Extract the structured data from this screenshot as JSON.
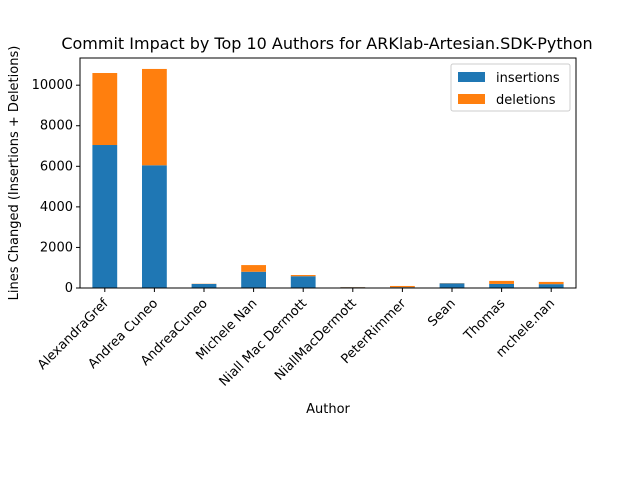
{
  "chart_data": {
    "type": "bar",
    "stacked": true,
    "title": "Commit Impact by Top 10 Authors for ARKlab-Artesian.SDK-Python",
    "xlabel": "Author",
    "ylabel": "Lines Changed (Insertions + Deletions)",
    "categories": [
      "AlexandraGref",
      "Andrea Cuneo",
      "AndreaCuneo",
      "Michele Nan",
      "Niall Mac Dermott",
      "NiallMacDermott",
      "PeterRimmer",
      "Sean",
      "Thomas",
      "mchele.nan"
    ],
    "series": [
      {
        "name": "insertions",
        "color": "#1f77b4",
        "values": [
          7050,
          6050,
          200,
          800,
          580,
          40,
          40,
          230,
          200,
          190
        ]
      },
      {
        "name": "deletions",
        "color": "#ff7f0e",
        "values": [
          3550,
          4750,
          10,
          330,
          60,
          10,
          60,
          10,
          150,
          110
        ]
      }
    ],
    "ylim": [
      0,
      11340
    ],
    "yticks": [
      0,
      2000,
      4000,
      6000,
      8000,
      10000
    ],
    "ytick_labels": [
      "0",
      "2000",
      "4000",
      "6000",
      "8000",
      "10000"
    ],
    "legend_position": "upper right",
    "grid": false
  }
}
